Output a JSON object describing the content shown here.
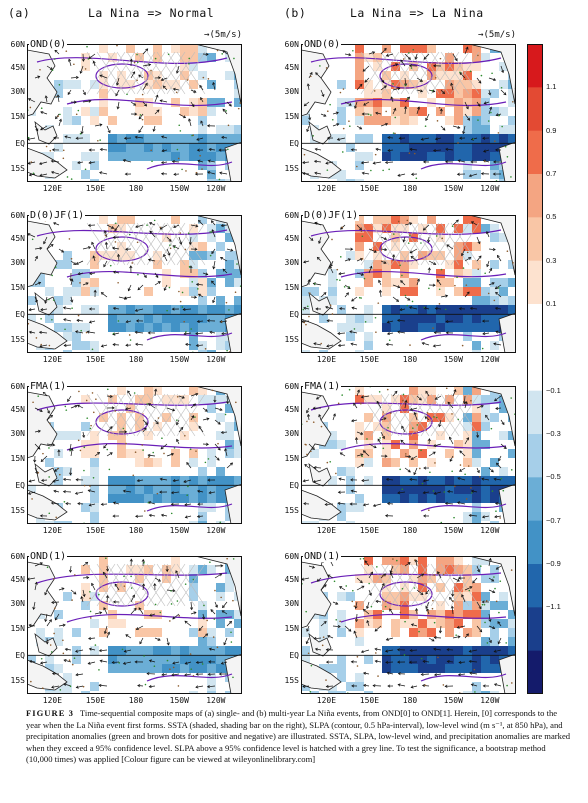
{
  "figure": {
    "col_a": {
      "tag": "(a)",
      "title": "La Nina => Normal"
    },
    "col_b": {
      "tag": "(b)",
      "title": "La Nina => La Nina"
    },
    "ref_vector": "→(5m/s)",
    "panels": [
      {
        "label": "OND(0)"
      },
      {
        "label": "D(0)JF(1)"
      },
      {
        "label": "FMA(1)"
      },
      {
        "label": "OND(1)"
      }
    ],
    "lat_labels": [
      "60N",
      "45N",
      "30N",
      "15N",
      "EQ",
      "15S"
    ],
    "lon_labels": [
      "120E",
      "150E",
      "180",
      "150W",
      "120W"
    ],
    "colorbar": {
      "labels": [
        "1.1",
        "0.9",
        "0.7",
        "0.5",
        "0.3",
        "0.1",
        "−0.1",
        "−0.3",
        "−0.5",
        "−0.7",
        "−0.9",
        "−1.1"
      ],
      "colors": [
        "#d7191c",
        "#e34a33",
        "#ef6c4a",
        "#f4a582",
        "#f9c6a6",
        "#fde2cf",
        "#ffffff",
        "#ffffff",
        "#d1e5f0",
        "#a6cfe9",
        "#6baed6",
        "#4292c6",
        "#2166ac",
        "#1a3f8c",
        "#141b6b"
      ]
    },
    "caption": {
      "label": "FIGURE 3",
      "text": "Time-sequential composite maps of (a) single- and (b) multi-year La Niña events, from OND[0] to OND[1]. Herein, [0] corresponds to the year when the La Niña event first forms. SSTA (shaded, shading bar on the right), SLPA (contour, 0.5 hPa-interval), low-level wind (m s⁻¹, at 850 hPa), and precipitation anomalies (green and brown dots for positive and negative) are illustrated. SSTA, SLPA, low-level wind, and precipitation anomalies are marked when they exceed a 95% confidence level. SLPA above a 95% confidence level is hatched with a grey line. To test the significance, a bootstrap method (10,000 times) was applied [Colour figure can be viewed at wileyonlinelibrary.com]"
    }
  }
}
